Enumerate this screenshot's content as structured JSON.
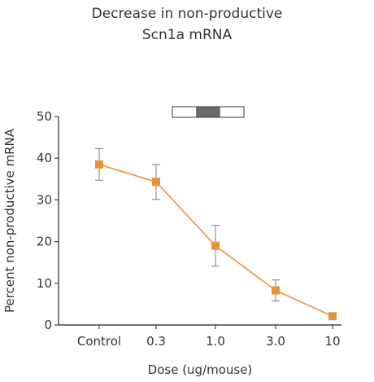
{
  "chart_data": {
    "type": "line",
    "title": "Decrease in non-productive",
    "subtitle": "Scn1a mRNA",
    "xlabel": "Dose (ug/mouse)",
    "ylabel": "Percent non-productive mRNA",
    "categories": [
      "Control",
      "0.3",
      "1.0",
      "3.0",
      "10"
    ],
    "ylim": [
      0,
      50
    ],
    "yticks": [
      0,
      10,
      20,
      30,
      40,
      50
    ],
    "grid": false,
    "series": [
      {
        "values": [
          38.5,
          34.3,
          19.0,
          8.3,
          2.1
        ],
        "error": [
          3.8,
          4.2,
          4.9,
          2.5,
          0
        ],
        "color": "#E8923A"
      }
    ],
    "exon_diagram": {
      "box_fill": "#ffffff",
      "highlight_fill": "#6b6b6b",
      "border_color": "#555555"
    }
  }
}
